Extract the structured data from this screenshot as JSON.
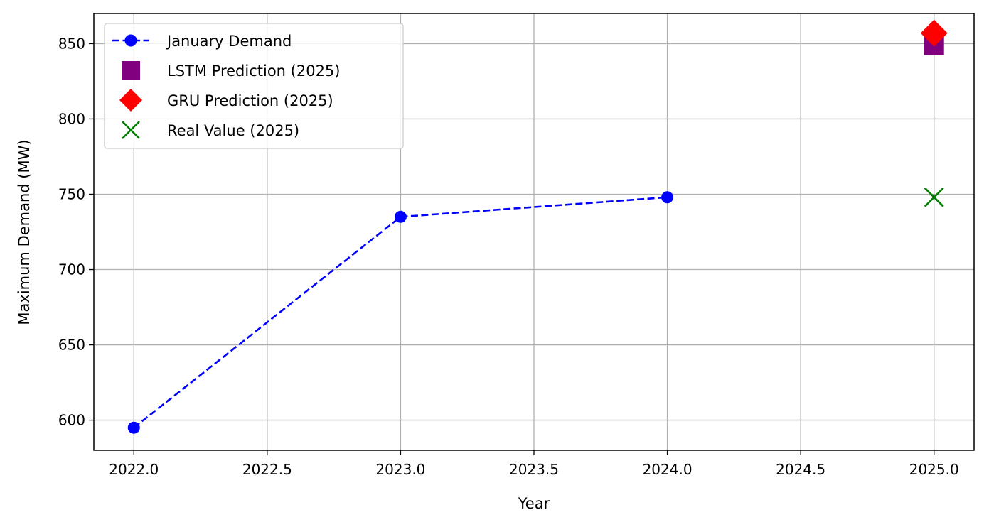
{
  "chart_data": {
    "type": "line",
    "title": "",
    "xlabel": "Year",
    "ylabel": "Maximum Demand (MW)",
    "xlim": [
      2021.85,
      2025.15
    ],
    "ylim": [
      580,
      870
    ],
    "xticks": [
      2022.0,
      2022.5,
      2023.0,
      2023.5,
      2024.0,
      2024.5,
      2025.0
    ],
    "xtick_labels": [
      "2022.0",
      "2022.5",
      "2023.0",
      "2023.5",
      "2024.0",
      "2024.5",
      "2025.0"
    ],
    "yticks": [
      600,
      650,
      700,
      750,
      800,
      850
    ],
    "ytick_labels": [
      "600",
      "650",
      "700",
      "750",
      "800",
      "850"
    ],
    "grid": true,
    "legend_position": "top-left",
    "series": [
      {
        "name": "January Demand",
        "kind": "line",
        "style": "dashed",
        "marker": "circle",
        "color": "#0000ff",
        "x": [
          2022,
          2023,
          2024
        ],
        "y": [
          595,
          735,
          748
        ]
      },
      {
        "name": "LSTM Prediction (2025)",
        "kind": "scatter",
        "marker": "square",
        "color": "#800080",
        "x": [
          2025
        ],
        "y": [
          849
        ]
      },
      {
        "name": "GRU Prediction (2025)",
        "kind": "scatter",
        "marker": "diamond",
        "color": "#ff0000",
        "x": [
          2025
        ],
        "y": [
          857
        ]
      },
      {
        "name": "Real Value (2025)",
        "kind": "scatter",
        "marker": "x",
        "color": "#008000",
        "x": [
          2025
        ],
        "y": [
          748
        ]
      }
    ]
  }
}
